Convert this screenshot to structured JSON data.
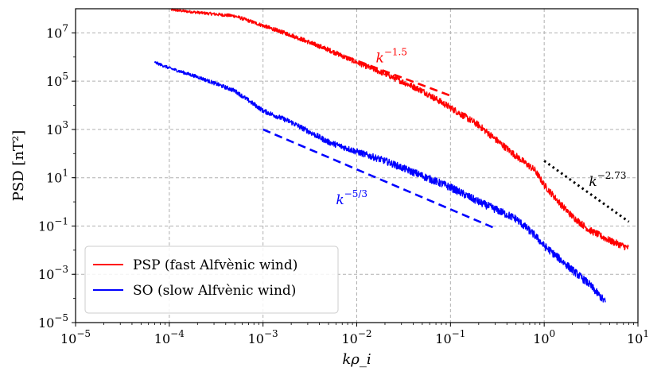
{
  "chart_data": {
    "type": "line",
    "log_x": true,
    "log_y": true,
    "xlim": [
      1e-05,
      10
    ],
    "ylim": [
      1e-05,
      100000000
    ],
    "xlabel": "kρ_i",
    "ylabel": "PSD [nT²]",
    "grid": true,
    "x_ticks": [
      {
        "value": 1e-05,
        "base": "10",
        "exp": "−5"
      },
      {
        "value": 0.0001,
        "base": "10",
        "exp": "−4"
      },
      {
        "value": 0.001,
        "base": "10",
        "exp": "−3"
      },
      {
        "value": 0.01,
        "base": "10",
        "exp": "−2"
      },
      {
        "value": 0.1,
        "base": "10",
        "exp": "−1"
      },
      {
        "value": 1,
        "base": "10",
        "exp": "0"
      },
      {
        "value": 10,
        "base": "10",
        "exp": "1"
      }
    ],
    "y_ticks": [
      {
        "value": 1e-05,
        "base": "10",
        "exp": "−5"
      },
      {
        "value": 0.001,
        "base": "10",
        "exp": "−3"
      },
      {
        "value": 0.1,
        "base": "10",
        "exp": "−1"
      },
      {
        "value": 10,
        "base": "10",
        "exp": "1"
      },
      {
        "value": 1000,
        "base": "10",
        "exp": "3"
      },
      {
        "value": 100000,
        "base": "10",
        "exp": "5"
      },
      {
        "value": 10000000,
        "base": "10",
        "exp": "7"
      }
    ],
    "series": [
      {
        "name": "PSP (fast Alfvènic wind)",
        "color": "#ff0000",
        "noise_band_dex": 0.28,
        "points": [
          [
            0.000105,
            90000000
          ],
          [
            0.0002,
            70000000
          ],
          [
            0.0005,
            50000000
          ],
          [
            0.001,
            20000000
          ],
          [
            0.002,
            8000000
          ],
          [
            0.005,
            2000000
          ],
          [
            0.01,
            600000
          ],
          [
            0.02,
            200000
          ],
          [
            0.05,
            40000
          ],
          [
            0.1,
            8000
          ],
          [
            0.2,
            1500
          ],
          [
            0.3,
            400
          ],
          [
            0.5,
            80
          ],
          [
            0.8,
            20
          ],
          [
            1.0,
            5
          ],
          [
            1.5,
            0.8
          ],
          [
            2.0,
            0.25
          ],
          [
            3.0,
            0.07
          ],
          [
            5.0,
            0.025
          ],
          [
            8.0,
            0.012
          ]
        ]
      },
      {
        "name": "SO (slow Alfvènic wind)",
        "color": "#0000ff",
        "noise_band_dex": 0.32,
        "points": [
          [
            7e-05,
            600000
          ],
          [
            0.0001,
            350000
          ],
          [
            0.0002,
            150000
          ],
          [
            0.0005,
            40000
          ],
          [
            0.001,
            6000
          ],
          [
            0.002,
            2000
          ],
          [
            0.005,
            300
          ],
          [
            0.01,
            120
          ],
          [
            0.02,
            50
          ],
          [
            0.05,
            12
          ],
          [
            0.1,
            4
          ],
          [
            0.2,
            1
          ],
          [
            0.3,
            0.5
          ],
          [
            0.5,
            0.2
          ],
          [
            0.8,
            0.04
          ],
          [
            1.0,
            0.015
          ],
          [
            1.5,
            0.004
          ],
          [
            2.0,
            0.0015
          ],
          [
            3.0,
            0.0004
          ],
          [
            4.5,
            7e-05
          ]
        ]
      }
    ],
    "reference_lines": [
      {
        "name": "k^-1.5",
        "color": "#ff0000",
        "style": "dashed",
        "x": [
          0.001,
          0.1
        ],
        "y": [
          20000000,
          25000
        ]
      },
      {
        "name": "k^-5/3",
        "color": "#0000ff",
        "style": "dashed",
        "x": [
          0.001,
          0.3
        ],
        "y": [
          1000,
          0.08
        ]
      },
      {
        "name": "k^-2.73",
        "color": "#000000",
        "style": "dotted",
        "x": [
          1.0,
          8.0
        ],
        "y": [
          50,
          0.15
        ]
      }
    ],
    "annotations": [
      {
        "base": "k",
        "exp": "−1.5",
        "color": "#ff0000",
        "x": 0.016,
        "y": 600000
      },
      {
        "base": "k",
        "exp": "−5/3",
        "color": "#0000ff",
        "x": 0.006,
        "y": 0.8
      },
      {
        "base": "k",
        "exp": "−2.73",
        "color": "#000000",
        "x": 3.0,
        "y": 4.5
      }
    ],
    "legend": {
      "placement": "lower-left",
      "entries": [
        "PSP (fast Alfvènic wind)",
        "SO (slow Alfvènic wind)"
      ]
    }
  }
}
